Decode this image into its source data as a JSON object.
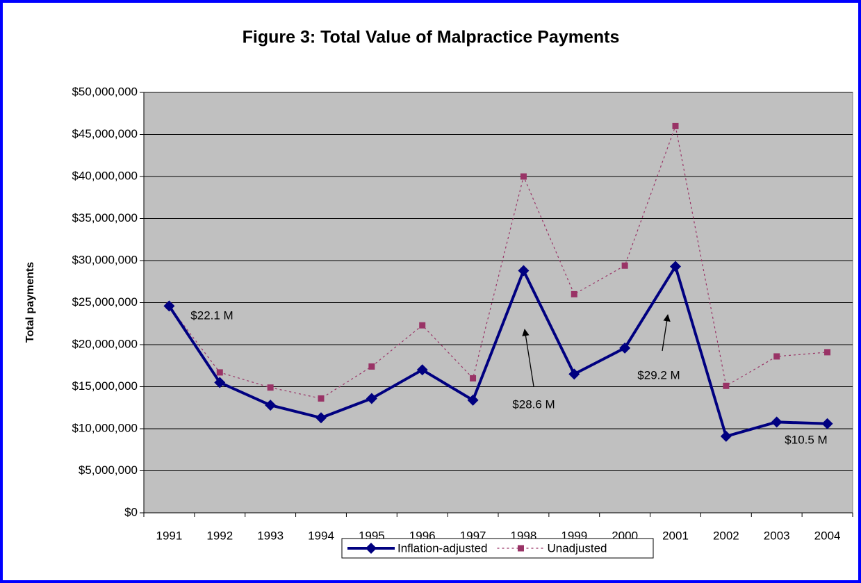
{
  "chart_data": {
    "type": "line",
    "title": "Figure 3: Total Value of Malpractice Payments",
    "y_label": "Total payments",
    "categories": [
      "1991",
      "1992",
      "1993",
      "1994",
      "1995",
      "1996",
      "1997",
      "1998",
      "1999",
      "2000",
      "2001",
      "2002",
      "2003",
      "2004"
    ],
    "series": [
      {
        "name": "Inflation-adjusted",
        "color": "#000080",
        "values": [
          24.6,
          15.5,
          12.8,
          11.3,
          13.6,
          17.0,
          13.4,
          28.8,
          16.5,
          19.6,
          29.3,
          9.1,
          10.8,
          10.6
        ]
      },
      {
        "name": "Unadjusted",
        "color": "#993366",
        "values": [
          24.6,
          16.7,
          14.9,
          13.6,
          17.4,
          22.3,
          16.0,
          40.0,
          26.0,
          29.4,
          46.0,
          15.1,
          18.6,
          19.1
        ]
      }
    ],
    "ylim": [
      0,
      50
    ],
    "yticks": [
      {
        "value": 0,
        "label": "$0"
      },
      {
        "value": 5,
        "label": "$5,000,000"
      },
      {
        "value": 10,
        "label": "$10,000,000"
      },
      {
        "value": 15,
        "label": "$15,000,000"
      },
      {
        "value": 20,
        "label": "$20,000,000"
      },
      {
        "value": 25,
        "label": "$25,000,000"
      },
      {
        "value": 30,
        "label": "$30,000,000"
      },
      {
        "value": 35,
        "label": "$35,000,000"
      },
      {
        "value": 40,
        "label": "$40,000,000"
      },
      {
        "value": 45,
        "label": "$45,000,000"
      },
      {
        "value": 50,
        "label": "$50,000,000"
      }
    ],
    "grid": true,
    "legend": "bottom",
    "annotations": [
      "$22.1 M",
      "$28.6 M",
      "$29.2 M",
      "$10.5 M"
    ]
  }
}
